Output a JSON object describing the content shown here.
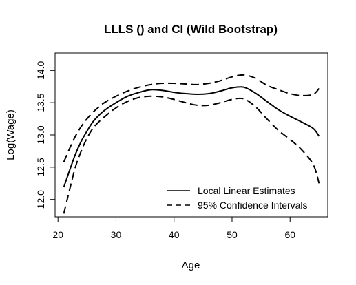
{
  "chart_data": {
    "type": "line",
    "title": "LLLS () and CI (Wild Bootstrap)",
    "xlabel": "Age",
    "ylabel": "Log(Wage)",
    "xlim": [
      19.5,
      66.5
    ],
    "ylim": [
      11.73,
      14.27
    ],
    "x_ticks": [
      20,
      30,
      40,
      50,
      60
    ],
    "x_tick_labels": [
      "20",
      "30",
      "40",
      "50",
      "60"
    ],
    "y_ticks": [
      12.0,
      12.5,
      13.0,
      13.5,
      14.0
    ],
    "y_tick_labels": [
      "12.0",
      "12.5",
      "13.0",
      "13.5",
      "14.0"
    ],
    "legend_position": "bottom-right",
    "series": [
      {
        "name": "Local Linear Estimates",
        "style": "solid",
        "x": [
          21,
          22,
          23,
          24,
          25,
          26,
          27,
          28,
          30,
          32,
          34,
          36,
          38,
          40,
          42,
          44,
          46,
          48,
          50,
          52,
          54,
          56,
          58,
          60,
          62,
          64,
          65
        ],
        "y": [
          12.19,
          12.45,
          12.7,
          12.9,
          13.06,
          13.2,
          13.3,
          13.38,
          13.5,
          13.6,
          13.66,
          13.7,
          13.69,
          13.66,
          13.64,
          13.63,
          13.64,
          13.68,
          13.73,
          13.74,
          13.65,
          13.52,
          13.39,
          13.29,
          13.2,
          13.1,
          12.98
        ]
      },
      {
        "name": "95% Confidence Intervals",
        "style": "dashed",
        "x": [
          21,
          22,
          23,
          24,
          25,
          26,
          27,
          28,
          30,
          32,
          34,
          36,
          38,
          40,
          42,
          44,
          46,
          48,
          50,
          52,
          54,
          56,
          58,
          60,
          62,
          64,
          65
        ],
        "y": [
          12.58,
          12.79,
          12.98,
          13.13,
          13.25,
          13.35,
          13.43,
          13.5,
          13.6,
          13.68,
          13.74,
          13.78,
          13.8,
          13.8,
          13.79,
          13.78,
          13.8,
          13.84,
          13.9,
          13.93,
          13.88,
          13.77,
          13.7,
          13.64,
          13.61,
          13.63,
          13.72
        ]
      },
      {
        "name": "",
        "style": "dashed",
        "x": [
          21,
          22,
          23,
          24,
          25,
          26,
          27,
          28,
          30,
          32,
          34,
          36,
          38,
          40,
          42,
          44,
          46,
          48,
          50,
          52,
          54,
          56,
          58,
          60,
          62,
          64,
          65
        ],
        "y": [
          11.78,
          12.15,
          12.5,
          12.75,
          12.95,
          13.1,
          13.2,
          13.28,
          13.42,
          13.52,
          13.58,
          13.6,
          13.59,
          13.55,
          13.5,
          13.46,
          13.46,
          13.5,
          13.55,
          13.56,
          13.44,
          13.25,
          13.07,
          12.93,
          12.77,
          12.54,
          12.25
        ]
      }
    ],
    "legend": [
      {
        "label": "Local Linear Estimates",
        "style": "solid"
      },
      {
        "label": "95% Confidence Intervals",
        "style": "dashed"
      }
    ]
  }
}
